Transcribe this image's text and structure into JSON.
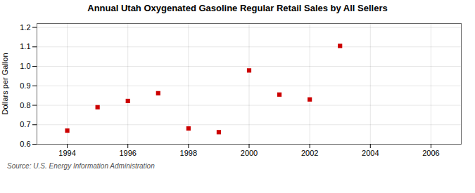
{
  "chart_data": {
    "type": "scatter",
    "title": "Annual Utah Oxygenated Gasoline Regular Retail Sales by All Sellers",
    "ylabel": "Dollars per Gallon",
    "source": "Source: U.S. Energy Information Administration",
    "x": [
      1994,
      1995,
      1996,
      1997,
      1998,
      1999,
      2000,
      2001,
      2002,
      2003
    ],
    "values": [
      0.67,
      0.79,
      0.822,
      0.862,
      0.681,
      0.662,
      0.979,
      0.855,
      0.83,
      1.105
    ],
    "color": "#cc0000",
    "marker": "square",
    "xlim": [
      1993.0,
      2007.0
    ],
    "ylim": [
      0.6,
      1.22
    ],
    "xticks": [
      1994,
      1996,
      1998,
      2000,
      2002,
      2004,
      2006
    ],
    "yticks": [
      0.6,
      0.7,
      0.8,
      0.9,
      {
        "value": 1.0,
        "label": "1.0"
      },
      1.1,
      1.2
    ],
    "grid": true
  }
}
